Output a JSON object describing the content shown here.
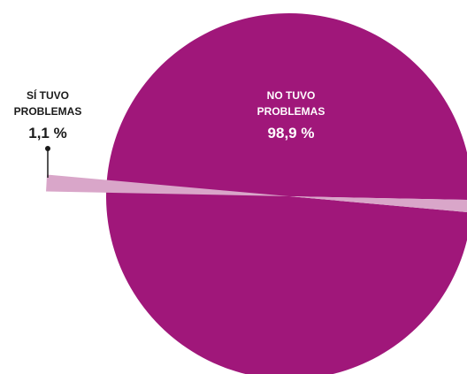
{
  "chart_data": {
    "type": "pie",
    "slices": [
      {
        "label_line1": "NO TUVO",
        "label_line2": "PROBLEMAS",
        "value": 98.9,
        "value_label": "98,9 %",
        "color": "#a0177a"
      },
      {
        "label_line1": "SÍ TUVO",
        "label_line2": "PROBLEMAS",
        "value": 1.1,
        "value_label": "1,1 %",
        "color": "#d9a6c9",
        "exploded": true
      }
    ]
  }
}
